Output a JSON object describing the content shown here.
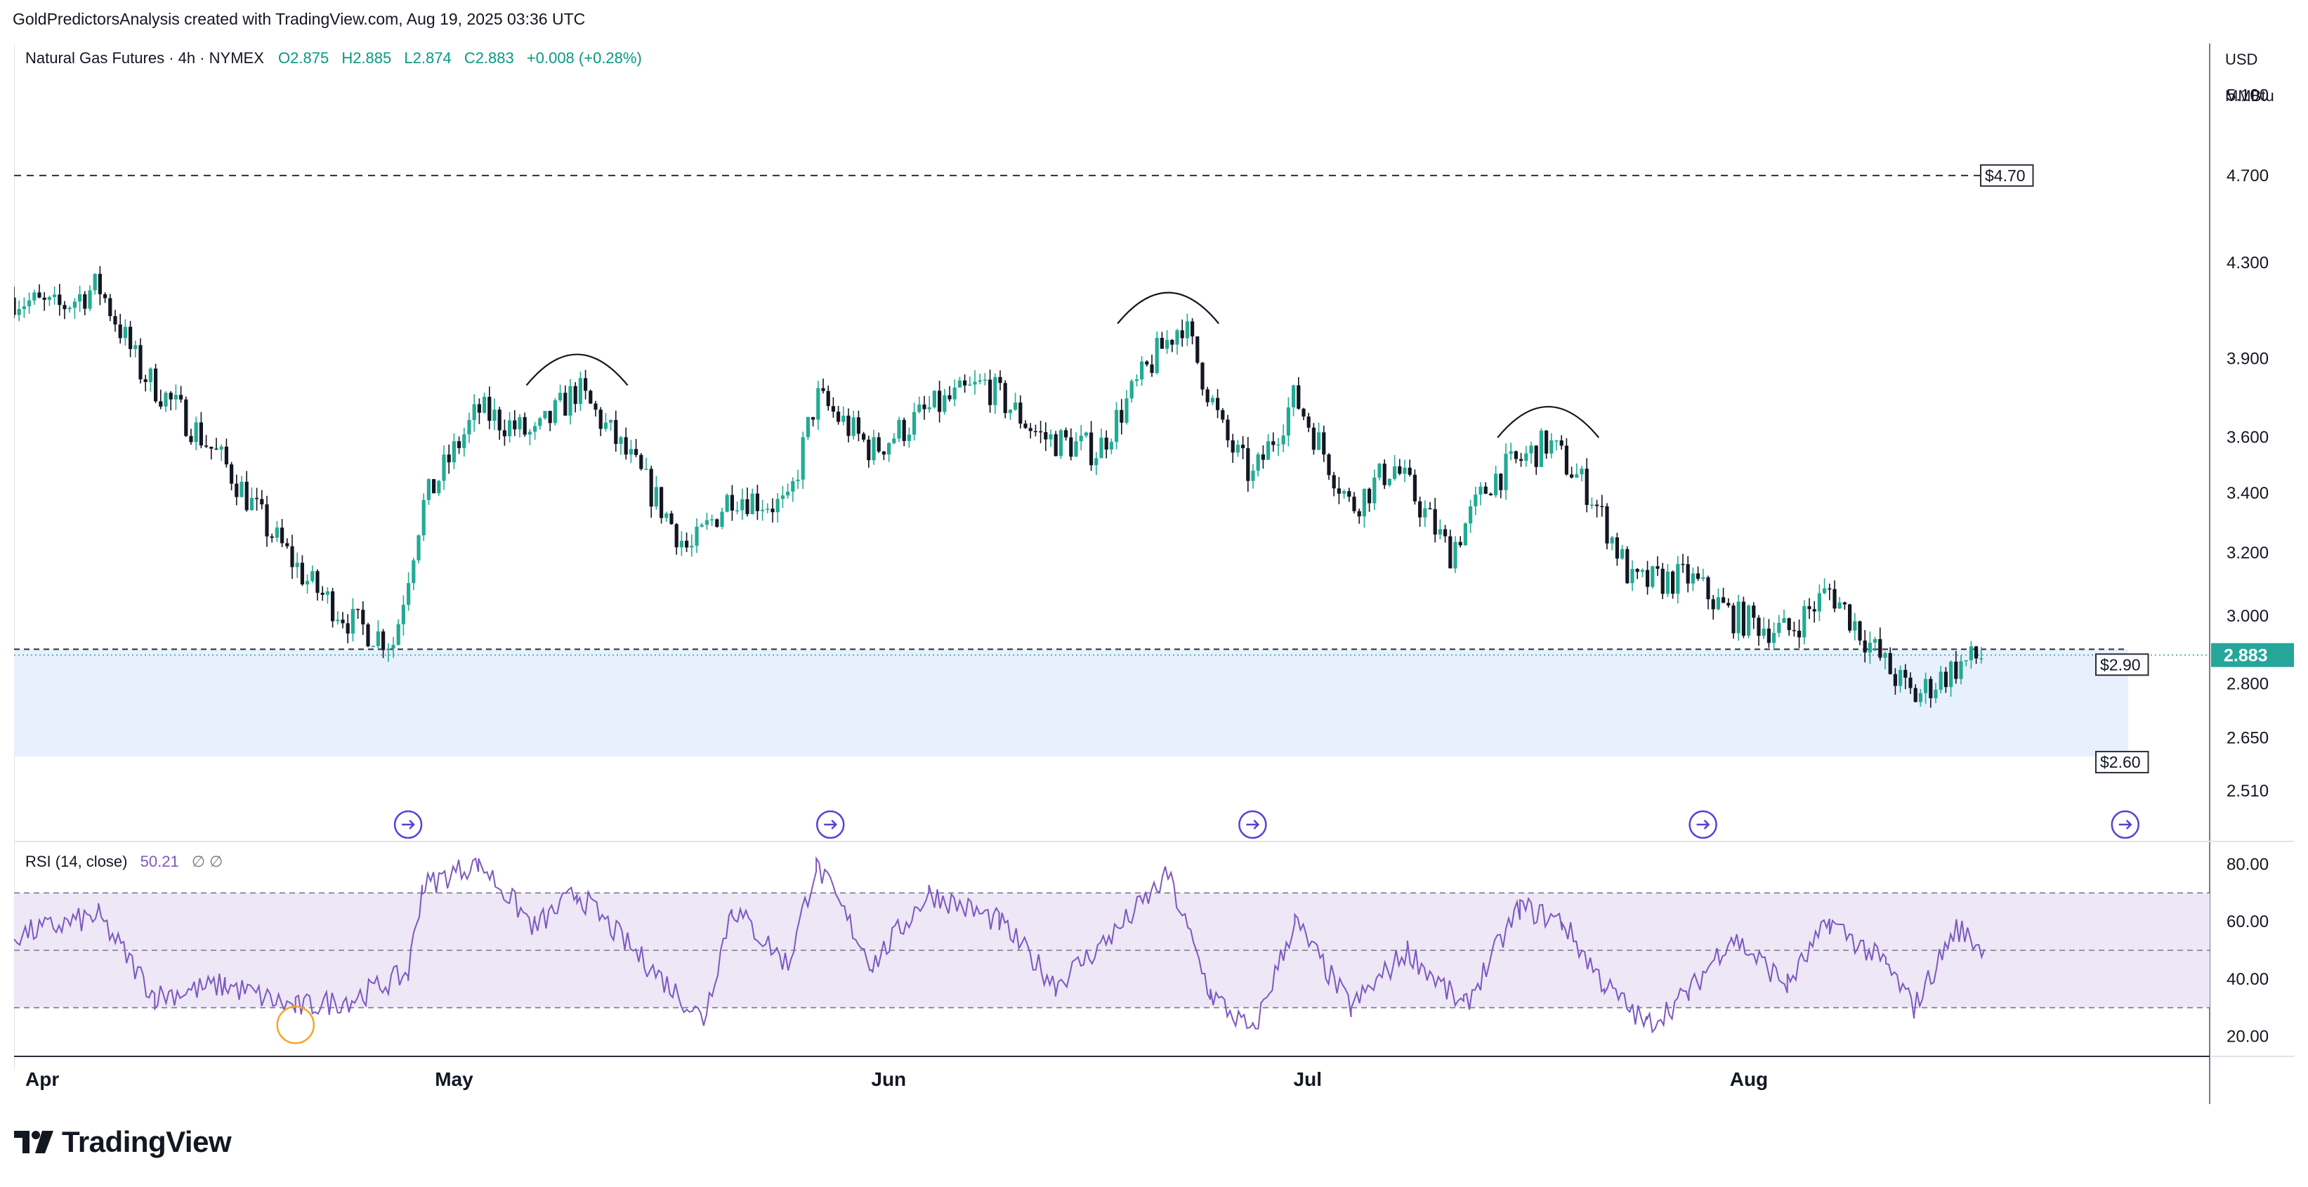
{
  "credit": "GoldPredictorsAnalysis created with TradingView.com, Aug 19, 2025 03:36 UTC",
  "legend": {
    "symbol": "Natural Gas Futures · 4h · NYMEX",
    "open": "O2.875",
    "high": "H2.885",
    "low": "L2.874",
    "close": "C2.883",
    "change": "+0.008 (+0.28%)"
  },
  "price_axis": {
    "currency": "USD",
    "unit": "MMBtu",
    "ticks": [
      "5.100",
      "4.700",
      "4.300",
      "3.900",
      "3.600",
      "3.400",
      "3.200",
      "3.000",
      "2.800",
      "2.650",
      "2.510"
    ],
    "current_price": "2.883"
  },
  "time_axis": {
    "ticks": [
      "Apr",
      "May",
      "Jun",
      "Jul",
      "Aug"
    ]
  },
  "annotations": {
    "upper_line_label": "$4.70",
    "zone_top_label": "$2.90",
    "zone_bottom_label": "$2.60"
  },
  "rsi": {
    "label": "RSI (14, close)",
    "value": "50.21",
    "extra": "∅  ∅",
    "ticks": [
      "80.00",
      "60.00",
      "40.00",
      "20.00"
    ]
  },
  "brand": {
    "name": "TradingView"
  },
  "colors": {
    "up": "#22ab94",
    "down": "#131722",
    "zone": "#e8f0fe",
    "rsi_line": "#7e57c2",
    "rsi_band": "#ede7f6",
    "price_tag": "#26a69a",
    "divider_icon": "#5b3fd6",
    "highlight_circle": "#f5a623"
  },
  "chart_data": {
    "type": "candlestick",
    "title": "Natural Gas Futures · 4h · NYMEX",
    "y_scale": "log",
    "ylim": [
      2.45,
      5.3
    ],
    "x_ticks": [
      "Apr",
      "May",
      "Jun",
      "Jul",
      "Aug"
    ],
    "close_path": [
      {
        "date": "2025-03-31",
        "close": 4.15
      },
      {
        "date": "2025-04-03",
        "close": 4.1
      },
      {
        "date": "2025-04-06",
        "close": 4.2
      },
      {
        "date": "2025-04-09",
        "close": 3.85
      },
      {
        "date": "2025-04-12",
        "close": 3.68
      },
      {
        "date": "2025-04-15",
        "close": 3.5
      },
      {
        "date": "2025-04-18",
        "close": 3.28
      },
      {
        "date": "2025-04-21",
        "close": 3.1
      },
      {
        "date": "2025-04-24",
        "close": 2.98
      },
      {
        "date": "2025-04-27",
        "close": 2.92
      },
      {
        "date": "2025-04-29",
        "close": 3.35
      },
      {
        "date": "2025-05-03",
        "close": 3.7
      },
      {
        "date": "2025-05-07",
        "close": 3.6
      },
      {
        "date": "2025-05-10",
        "close": 3.78
      },
      {
        "date": "2025-05-14",
        "close": 3.5
      },
      {
        "date": "2025-05-18",
        "close": 3.2
      },
      {
        "date": "2025-05-21",
        "close": 3.4
      },
      {
        "date": "2025-05-25",
        "close": 3.35
      },
      {
        "date": "2025-05-27",
        "close": 3.75
      },
      {
        "date": "2025-05-31",
        "close": 3.55
      },
      {
        "date": "2025-06-04",
        "close": 3.7
      },
      {
        "date": "2025-06-08",
        "close": 3.8
      },
      {
        "date": "2025-06-12",
        "close": 3.6
      },
      {
        "date": "2025-06-16",
        "close": 3.55
      },
      {
        "date": "2025-06-20",
        "close": 3.9
      },
      {
        "date": "2025-06-22",
        "close": 4.05
      },
      {
        "date": "2025-06-25",
        "close": 3.6
      },
      {
        "date": "2025-06-27",
        "close": 3.45
      },
      {
        "date": "2025-06-30",
        "close": 3.75
      },
      {
        "date": "2025-07-04",
        "close": 3.35
      },
      {
        "date": "2025-07-07",
        "close": 3.5
      },
      {
        "date": "2025-07-11",
        "close": 3.2
      },
      {
        "date": "2025-07-14",
        "close": 3.45
      },
      {
        "date": "2025-07-18",
        "close": 3.58
      },
      {
        "date": "2025-07-21",
        "close": 3.4
      },
      {
        "date": "2025-07-24",
        "close": 3.1
      },
      {
        "date": "2025-07-28",
        "close": 3.12
      },
      {
        "date": "2025-07-31",
        "close": 3.0
      },
      {
        "date": "2025-08-04",
        "close": 2.95
      },
      {
        "date": "2025-08-07",
        "close": 3.08
      },
      {
        "date": "2025-08-11",
        "close": 2.85
      },
      {
        "date": "2025-08-13",
        "close": 2.76
      },
      {
        "date": "2025-08-16",
        "close": 2.85
      },
      {
        "date": "2025-08-18",
        "close": 2.883
      }
    ],
    "levels": {
      "upper_dashed": 4.7,
      "support_zone": [
        2.6,
        2.9
      ],
      "last": 2.883
    },
    "arc_marks": [
      {
        "label": "top-1",
        "date": "2025-05-10",
        "price": 3.85
      },
      {
        "label": "top-2",
        "date": "2025-06-21",
        "price": 4.1
      },
      {
        "label": "top-3",
        "date": "2025-07-18",
        "price": 3.65
      }
    ],
    "rsi_series": {
      "name": "RSI (14, close)",
      "levels": [
        70,
        50,
        30
      ],
      "ylim": [
        15,
        85
      ],
      "points": [
        {
          "date": "2025-03-31",
          "value": 55
        },
        {
          "date": "2025-04-06",
          "value": 62
        },
        {
          "date": "2025-04-10",
          "value": 34
        },
        {
          "date": "2025-04-15",
          "value": 38
        },
        {
          "date": "2025-04-20",
          "value": 30
        },
        {
          "date": "2025-04-24",
          "value": 33
        },
        {
          "date": "2025-04-28",
          "value": 42
        },
        {
          "date": "2025-04-29",
          "value": 72
        },
        {
          "date": "2025-05-03",
          "value": 81
        },
        {
          "date": "2025-05-07",
          "value": 58
        },
        {
          "date": "2025-05-10",
          "value": 70
        },
        {
          "date": "2025-05-15",
          "value": 45
        },
        {
          "date": "2025-05-19",
          "value": 26
        },
        {
          "date": "2025-05-21",
          "value": 65
        },
        {
          "date": "2025-05-25",
          "value": 45
        },
        {
          "date": "2025-05-27",
          "value": 80
        },
        {
          "date": "2025-05-31",
          "value": 45
        },
        {
          "date": "2025-06-04",
          "value": 70
        },
        {
          "date": "2025-06-09",
          "value": 60
        },
        {
          "date": "2025-06-13",
          "value": 38
        },
        {
          "date": "2025-06-17",
          "value": 55
        },
        {
          "date": "2025-06-21",
          "value": 76
        },
        {
          "date": "2025-06-24",
          "value": 35
        },
        {
          "date": "2025-06-27",
          "value": 21
        },
        {
          "date": "2025-06-30",
          "value": 60
        },
        {
          "date": "2025-07-04",
          "value": 30
        },
        {
          "date": "2025-07-08",
          "value": 50
        },
        {
          "date": "2025-07-12",
          "value": 30
        },
        {
          "date": "2025-07-16",
          "value": 65
        },
        {
          "date": "2025-07-19",
          "value": 60
        },
        {
          "date": "2025-07-22",
          "value": 38
        },
        {
          "date": "2025-07-25",
          "value": 24
        },
        {
          "date": "2025-07-28",
          "value": 35
        },
        {
          "date": "2025-07-31",
          "value": 55
        },
        {
          "date": "2025-08-04",
          "value": 38
        },
        {
          "date": "2025-08-07",
          "value": 60
        },
        {
          "date": "2025-08-11",
          "value": 45
        },
        {
          "date": "2025-08-13",
          "value": 30
        },
        {
          "date": "2025-08-16",
          "value": 58
        },
        {
          "date": "2025-08-18",
          "value": 50.21
        }
      ]
    }
  }
}
